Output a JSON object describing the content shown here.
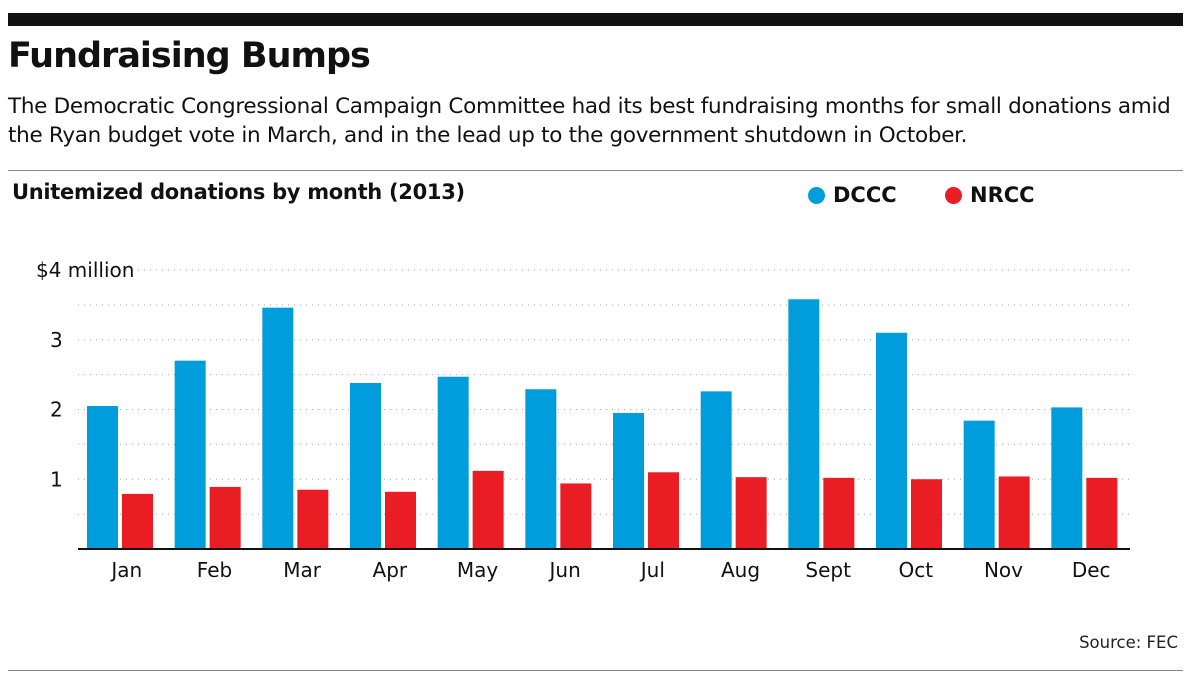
{
  "headline": "Fundraising Bumps",
  "dek": "The Democratic Congressional Campaign Committee had its best fundraising months for small donations amid the Ryan budget vote in March, and in the lead up to the government shutdown in October.",
  "source": "Source: FEC",
  "colors": {
    "dccc": "#009ddc",
    "nrcc": "#ea1c24",
    "grid": "#aaaaaa",
    "axis": "#111111"
  },
  "chart_data": {
    "type": "bar",
    "title": "Unitemized donations by month (2013)",
    "xlabel": "",
    "ylabel": "",
    "categories": [
      "Jan",
      "Feb",
      "Mar",
      "Apr",
      "May",
      "Jun",
      "Jul",
      "Aug",
      "Sept",
      "Oct",
      "Nov",
      "Dec"
    ],
    "series": [
      {
        "name": "DCCC",
        "color": "#009ddc",
        "values": [
          2.05,
          2.7,
          3.46,
          2.38,
          2.47,
          2.29,
          1.95,
          2.26,
          3.58,
          3.1,
          1.84,
          2.03
        ]
      },
      {
        "name": "NRCC",
        "color": "#ea1c24",
        "values": [
          0.79,
          0.89,
          0.85,
          0.82,
          1.12,
          0.94,
          1.1,
          1.03,
          1.02,
          1.0,
          1.04,
          1.02
        ]
      }
    ],
    "ylim": [
      0,
      4
    ],
    "yticks": [
      {
        "value": 1,
        "label": "1"
      },
      {
        "value": 2,
        "label": "2"
      },
      {
        "value": 3,
        "label": "3"
      },
      {
        "value": 4,
        "label": "$4 million"
      }
    ],
    "grid": true,
    "grid_minor_step": 0.5,
    "legend_position": "top-right"
  }
}
